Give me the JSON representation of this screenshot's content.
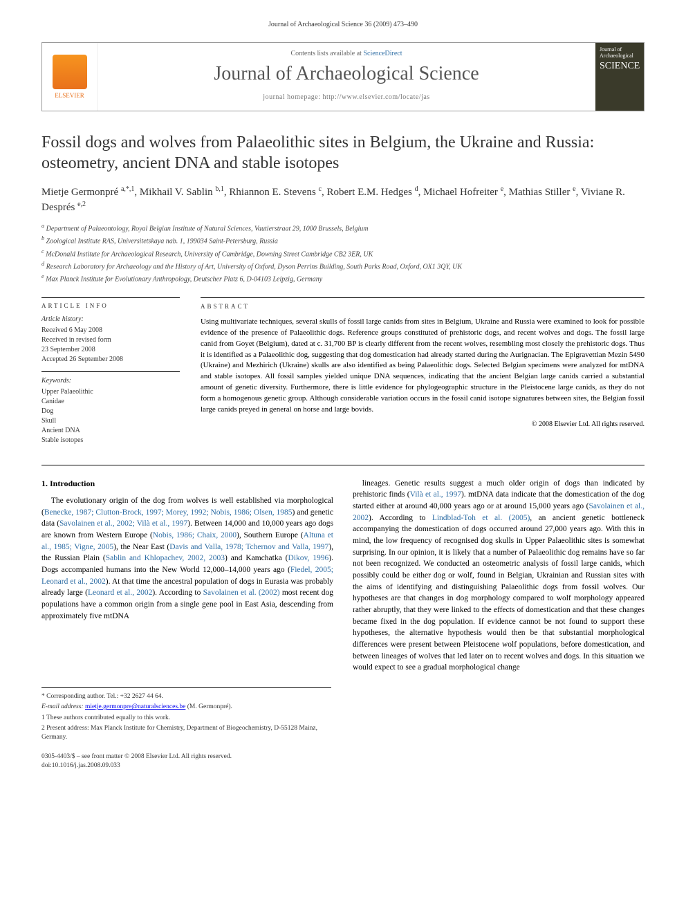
{
  "running_head": "Journal of Archaeological Science 36 (2009) 473–490",
  "header": {
    "sd_prefix": "Contents lists available at ",
    "sd_link": "ScienceDirect",
    "journal_name": "Journal of Archaeological Science",
    "homepage_label": "journal homepage: http://www.elsevier.com/locate/jas",
    "publisher": "ELSEVIER",
    "cover_line1": "Journal of",
    "cover_line2": "Archaeological",
    "cover_line3": "SCIENCE"
  },
  "article": {
    "title": "Fossil dogs and wolves from Palaeolithic sites in Belgium, the Ukraine and Russia: osteometry, ancient DNA and stable isotopes",
    "authors_html": "Mietje Germonpré <sup>a,*,1</sup>, Mikhail V. Sablin <sup>b,1</sup>, Rhiannon E. Stevens <sup>c</sup>, Robert E.M. Hedges <sup>d</sup>, Michael Hofreiter <sup>e</sup>, Mathias Stiller <sup>e</sup>, Viviane R. Després <sup>e,2</sup>",
    "affiliations": [
      "a Department of Palaeontology, Royal Belgian Institute of Natural Sciences, Vautierstraat 29, 1000 Brussels, Belgium",
      "b Zoological Institute RAS, Universitetskaya nab. 1, 199034 Saint-Petersburg, Russia",
      "c McDonald Institute for Archaeological Research, University of Cambridge, Downing Street Cambridge CB2 3ER, UK",
      "d Research Laboratory for Archaeology and the History of Art, University of Oxford, Dyson Perrins Building, South Parks Road, Oxford, OX1 3QY, UK",
      "e Max Planck Institute for Evolutionary Anthropology, Deutscher Platz 6, D-04103 Leipzig, Germany"
    ]
  },
  "article_info": {
    "heading": "ARTICLE INFO",
    "history_label": "Article history:",
    "history": [
      "Received 6 May 2008",
      "Received in revised form",
      "23 September 2008",
      "Accepted 26 September 2008"
    ],
    "keywords_label": "Keywords:",
    "keywords": [
      "Upper Palaeolithic",
      "Canidae",
      "Dog",
      "Skull",
      "Ancient DNA",
      "Stable isotopes"
    ]
  },
  "abstract": {
    "heading": "ABSTRACT",
    "text": "Using multivariate techniques, several skulls of fossil large canids from sites in Belgium, Ukraine and Russia were examined to look for possible evidence of the presence of Palaeolithic dogs. Reference groups constituted of prehistoric dogs, and recent wolves and dogs. The fossil large canid from Goyet (Belgium), dated at c. 31,700 BP is clearly different from the recent wolves, resembling most closely the prehistoric dogs. Thus it is identified as a Palaeolithic dog, suggesting that dog domestication had already started during the Aurignacian. The Epigravettian Mezin 5490 (Ukraine) and Mezhirich (Ukraine) skulls are also identified as being Palaeolithic dogs. Selected Belgian specimens were analyzed for mtDNA and stable isotopes. All fossil samples yielded unique DNA sequences, indicating that the ancient Belgian large canids carried a substantial amount of genetic diversity. Furthermore, there is little evidence for phylogeographic structure in the Pleistocene large canids, as they do not form a homogenous genetic group. Although considerable variation occurs in the fossil canid isotope signatures between sites, the Belgian fossil large canids preyed in general on horse and large bovids.",
    "copyright": "© 2008 Elsevier Ltd. All rights reserved."
  },
  "body": {
    "section_heading": "1. Introduction",
    "col1_html": "The evolutionary origin of the dog from wolves is well established via morphological (<a href='#'>Benecke, 1987; Clutton-Brock, 1997; Morey, 1992; Nobis, 1986; Olsen, 1985</a>) and genetic data (<a href='#'>Savolainen et al., 2002; Vilà et al., 1997</a>). Between 14,000 and 10,000 years ago dogs are known from Western Europe (<a href='#'>Nobis, 1986; Chaix, 2000</a>), Southern Europe (<a href='#'>Altuna et al., 1985; Vigne, 2005</a>), the Near East (<a href='#'>Davis and Valla, 1978; Tchernov and Valla, 1997</a>), the Russian Plain (<a href='#'>Sablin and Khlopachev, 2002, 2003</a>) and Kamchatka (<a href='#'>Dikov, 1996</a>). Dogs accompanied humans into the New World 12,000–14,000 years ago (<a href='#'>Fiedel, 2005; Leonard et al., 2002</a>). At that time the ancestral population of dogs in Eurasia was probably already large (<a href='#'>Leonard et al., 2002</a>). According to <a href='#'>Savolainen et al. (2002)</a> most recent dog populations have a common origin from a single gene pool in East Asia, descending from approximately five mtDNA",
    "col2_html": "lineages. Genetic results suggest a much older origin of dogs than indicated by prehistoric finds (<a href='#'>Vilà et al., 1997</a>). mtDNA data indicate that the domestication of the dog started either at around 40,000 years ago or at around 15,000 years ago (<a href='#'>Savolainen et al., 2002</a>). According to <a href='#'>Lindblad-Toh et al. (2005)</a>, an ancient genetic bottleneck accompanying the domestication of dogs occurred around 27,000 years ago. With this in mind, the low frequency of recognised dog skulls in Upper Palaeolithic sites is somewhat surprising. In our opinion, it is likely that a number of Palaeolithic dog remains have so far not been recognized. We conducted an osteometric analysis of fossil large canids, which possibly could be either dog or wolf, found in Belgian, Ukrainian and Russian sites with the aims of identifying and distinguishing Palaeolithic dogs from fossil wolves. Our hypotheses are that changes in dog morphology compared to wolf morphology appeared rather abruptly, that they were linked to the effects of domestication and that these changes became fixed in the dog population. If evidence cannot be not found to support these hypotheses, the alternative hypothesis would then be that substantial morphological differences were present between Pleistocene wolf populations, before domestication, and between lineages of wolves that led later on to recent wolves and dogs. In this situation we would expect to see a gradual morphological change"
  },
  "footnotes": {
    "corr": "* Corresponding author. Tel.: +32 2627 44 64.",
    "email_label": "E-mail address:",
    "email": "mietje.germonpre@naturalsciences.be",
    "email_who": "(M. Germonpré).",
    "n1": "1 These authors contributed equally to this work.",
    "n2": "2 Present address: Max Planck Institute for Chemistry, Department of Biogeochemistry, D-55128 Mainz, Germany."
  },
  "footer": {
    "line1": "0305-4403/$ – see front matter © 2008 Elsevier Ltd. All rights reserved.",
    "line2": "doi:10.1016/j.jas.2008.09.033"
  },
  "colors": {
    "link": "#2e6da4",
    "elsevier_orange": "#e9711c",
    "text": "#000000",
    "muted": "#555555"
  }
}
